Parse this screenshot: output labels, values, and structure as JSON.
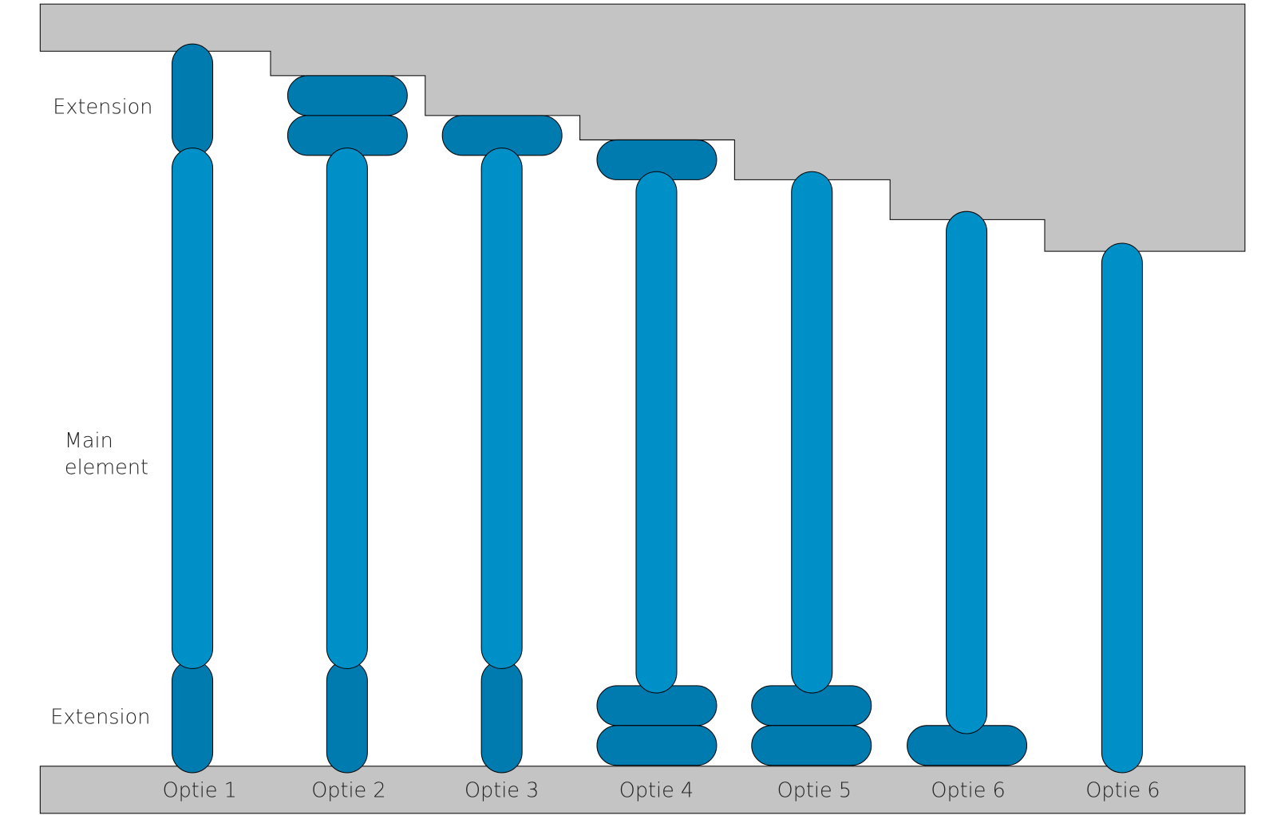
{
  "labels": {
    "top_extension": "Extension",
    "main_element": [
      "Main",
      "element"
    ],
    "bottom_extension": "Extension"
  },
  "options": [
    "Optie 1",
    "Optie 2",
    "Optie 3",
    "Optie 4",
    "Optie 5",
    "Optie 6",
    "Optie 6"
  ]
}
